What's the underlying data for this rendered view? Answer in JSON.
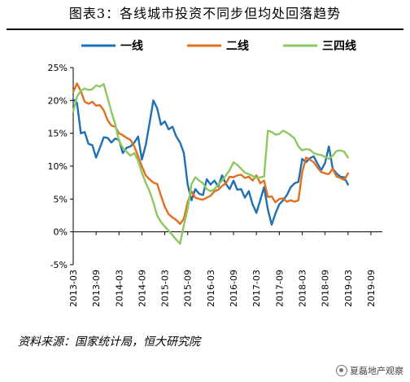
{
  "header": {
    "title": "图表3：各线城市投资不同步但均处回落趋势"
  },
  "footer": {
    "source": "资料来源：国家统计局，恒大研究院",
    "watermark": "夏磊地产观察"
  },
  "colors": {
    "tier1": "#1f6fb5",
    "tier2": "#e07020",
    "tier34": "#8cc860"
  },
  "icons": {
    "watermark": "wechat-icon"
  },
  "chart_data": {
    "type": "line",
    "title": "",
    "xlabel": "",
    "ylabel": "",
    "ylim": [
      -5,
      25
    ],
    "yticks": [
      -5,
      0,
      5,
      10,
      15,
      20,
      25
    ],
    "ytick_labels": [
      "-5%",
      "0%",
      "5%",
      "10%",
      "15%",
      "20%",
      "25%"
    ],
    "xticks": [
      "2013-03",
      "2013-09",
      "2014-03",
      "2014-09",
      "2015-03",
      "2015-09",
      "2016-03",
      "2016-09",
      "2017-03",
      "2017-09",
      "2018-03",
      "2018-09",
      "2019-03",
      "2019-09"
    ],
    "x_start": "2013-03",
    "x_end": "2019-12",
    "grid": false,
    "legend": "top",
    "series": [
      {
        "name": "一线",
        "values": [
          20.2,
          19.6,
          15,
          15.2,
          13.4,
          13.2,
          11.3,
          12.8,
          14.4,
          14.3,
          13.6,
          14.2,
          14,
          12,
          12.8,
          13,
          13.6,
          14.5,
          11,
          13.2,
          16.5,
          20,
          18.8,
          16.3,
          16.8,
          15.6,
          16,
          14.5,
          13.6,
          12,
          7.2,
          4.8,
          6.5,
          5.8,
          5.6,
          8,
          7.2,
          7.8,
          6.9,
          8.6,
          7.3,
          6.5,
          7.8,
          6.4,
          6.5,
          5.2,
          6.2,
          4.2,
          2.9,
          4.8,
          6.8,
          3.4,
          1.1,
          2.8,
          4.2,
          4.8,
          5.6,
          6.8,
          7.4,
          7.6,
          11.1,
          10.6,
          11.2,
          11.5,
          10.4,
          9.4,
          10.5,
          13,
          9.6,
          8.9,
          8.4,
          8.3,
          7.2
        ]
      },
      {
        "name": "二线",
        "values": [
          21.3,
          22.6,
          21.4,
          19.8,
          19.5,
          19.8,
          19.2,
          19.3,
          18.5,
          17,
          16.2,
          16,
          15,
          14.7,
          14.3,
          14,
          13,
          11.5,
          10,
          8.6,
          8,
          7.5,
          7.3,
          5.5,
          3.8,
          2.7,
          2.2,
          1.8,
          1.2,
          2,
          4.5,
          6.2,
          5.2,
          5,
          4.9,
          5.2,
          5.5,
          6.2,
          6.4,
          7,
          7.4,
          8.4,
          8.3,
          8.6,
          8.7,
          8.2,
          8.4,
          7.8,
          8.6,
          7.4,
          7.8,
          5.3,
          5.4,
          4.5,
          5,
          5.1,
          4.6,
          4.8,
          4.6,
          4.8,
          9.1,
          11.3,
          11,
          10.6,
          9.8,
          9.1,
          8.9,
          8.8,
          9.6,
          8.4,
          8.2,
          7.9,
          8.9
        ]
      },
      {
        "name": "三四线",
        "values": [
          18.3,
          20.6,
          21.5,
          21.8,
          21.6,
          21.7,
          22.3,
          22.1,
          22.5,
          20.4,
          18.3,
          16.4,
          13.8,
          12.8,
          12.2,
          11.6,
          12,
          10.8,
          9,
          7.5,
          6.2,
          4.5,
          2.5,
          1.5,
          0.8,
          0.2,
          -0.5,
          -1.2,
          -1.8,
          1,
          3.5,
          7.3,
          8.3,
          7.8,
          7.4,
          6.5,
          6.2,
          6.5,
          7.2,
          7.8,
          8.6,
          9.4,
          10.6,
          10.2,
          9.6,
          9,
          8.8,
          8.5,
          8.2,
          8.3,
          8.4,
          15.4,
          15.2,
          14.8,
          14.9,
          15.4,
          15.1,
          14.7,
          14.2,
          13,
          12.4,
          12.6,
          12.5,
          12,
          11.8,
          11.7,
          11.4,
          11.1,
          11.6,
          12.3,
          12.4,
          12.2,
          11.3
        ]
      }
    ]
  }
}
